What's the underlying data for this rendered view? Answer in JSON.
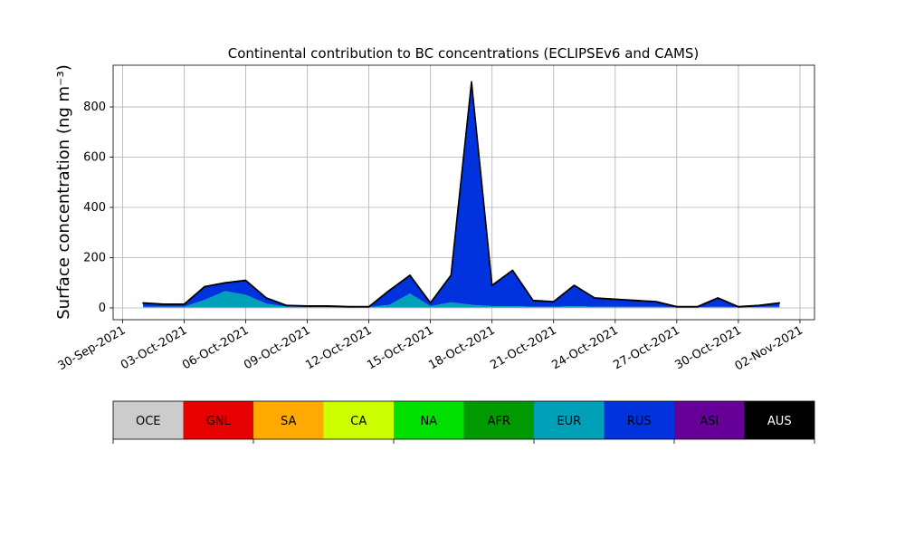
{
  "chart_data": {
    "type": "stacked_area",
    "title": "Continental contribution to BC concentrations (ECLIPSEv6 and CAMS)",
    "y_label": "Surface concentration (ng m⁻³)",
    "x": [
      "2021-10-01",
      "2021-10-02",
      "2021-10-03",
      "2021-10-04",
      "2021-10-05",
      "2021-10-06",
      "2021-10-07",
      "2021-10-08",
      "2021-10-09",
      "2021-10-10",
      "2021-10-11",
      "2021-10-12",
      "2021-10-13",
      "2021-10-14",
      "2021-10-15",
      "2021-10-16",
      "2021-10-17",
      "2021-10-18",
      "2021-10-19",
      "2021-10-20",
      "2021-10-21",
      "2021-10-22",
      "2021-10-23",
      "2021-10-24",
      "2021-10-25",
      "2021-10-26",
      "2021-10-27",
      "2021-10-28",
      "2021-10-29",
      "2021-10-30",
      "2021-10-31",
      "2021-11-01"
    ],
    "series": [
      {
        "name": "OCE",
        "color": "#cccccc",
        "values": [
          0,
          0,
          0,
          0,
          0,
          0,
          0,
          0,
          0,
          0,
          0,
          0,
          0,
          0,
          0,
          0,
          0,
          0,
          0,
          0,
          0,
          0,
          0,
          0,
          0,
          0,
          0,
          0,
          0,
          0,
          0,
          0
        ]
      },
      {
        "name": "GNL",
        "color": "#e60000",
        "values": [
          0,
          0,
          0,
          0,
          0,
          0,
          0,
          0,
          0,
          0,
          0,
          0,
          0,
          0,
          0,
          0,
          0,
          0,
          0,
          0,
          0,
          0,
          0,
          0,
          0,
          0,
          0,
          0,
          0,
          0,
          0,
          0
        ]
      },
      {
        "name": "SA",
        "color": "#ffaa00",
        "values": [
          0,
          0,
          0,
          0,
          0,
          0,
          0,
          0,
          0,
          0,
          0,
          0,
          0,
          0,
          0,
          0,
          0,
          0,
          0,
          0,
          0,
          0,
          0,
          0,
          0,
          0,
          0,
          0,
          0,
          0,
          0,
          0
        ]
      },
      {
        "name": "CA",
        "color": "#ccff00",
        "values": [
          1,
          1,
          1,
          1,
          1,
          1,
          1,
          1,
          1,
          1,
          1,
          1,
          1,
          1,
          1,
          1,
          1,
          1,
          1,
          1,
          1,
          1,
          1,
          1,
          1,
          1,
          1,
          1,
          1,
          1,
          1,
          1
        ]
      },
      {
        "name": "NA",
        "color": "#00e000",
        "values": [
          1,
          1,
          1,
          1,
          1,
          1,
          1,
          1,
          1,
          1,
          1,
          1,
          1,
          1,
          1,
          1,
          1,
          1,
          1,
          1,
          1,
          1,
          1,
          1,
          1,
          1,
          1,
          1,
          1,
          1,
          1,
          1
        ]
      },
      {
        "name": "AFR",
        "color": "#009900",
        "values": [
          0,
          0,
          0,
          0,
          0,
          0,
          0,
          0,
          0,
          0,
          0,
          0,
          0,
          0,
          0,
          0,
          0,
          0,
          0,
          0,
          0,
          0,
          0,
          0,
          0,
          0,
          0,
          0,
          0,
          0,
          0,
          0
        ]
      },
      {
        "name": "EUR",
        "color": "#00a0b8",
        "values": [
          3,
          3,
          3,
          30,
          65,
          50,
          15,
          3,
          2,
          2,
          2,
          1,
          10,
          55,
          5,
          20,
          10,
          5,
          5,
          3,
          3,
          5,
          3,
          3,
          3,
          3,
          1,
          1,
          3,
          1,
          2,
          3
        ]
      },
      {
        "name": "RUS",
        "color": "#0033dd",
        "values": [
          14,
          9,
          9,
          52,
          32,
          57,
          22,
          4,
          3,
          3,
          0,
          1,
          57,
          72,
          12,
          107,
          887,
          82,
          142,
          24,
          19,
          82,
          34,
          29,
          24,
          19,
          1,
          1,
          34,
          1,
          5,
          14
        ]
      },
      {
        "name": "ASI",
        "color": "#660099",
        "values": [
          0,
          0,
          0,
          0,
          0,
          0,
          0,
          0,
          0,
          0,
          0,
          0,
          0,
          0,
          0,
          0,
          0,
          0,
          0,
          0,
          0,
          0,
          0,
          0,
          0,
          0,
          0,
          0,
          0,
          0,
          0,
          0
        ]
      },
      {
        "name": "AUS",
        "color": "#000000",
        "values": [
          1,
          1,
          1,
          1,
          1,
          1,
          1,
          1,
          1,
          1,
          1,
          1,
          1,
          1,
          1,
          1,
          1,
          1,
          1,
          1,
          1,
          1,
          1,
          1,
          1,
          1,
          1,
          1,
          1,
          1,
          1,
          1
        ]
      }
    ],
    "xlim": [
      "2021-09-29T13:00",
      "2021-11-02T17:00"
    ],
    "xticks": [
      {
        "value": "2021-09-30",
        "label": "30-Sep-2021"
      },
      {
        "value": "2021-10-03",
        "label": "03-Oct-2021"
      },
      {
        "value": "2021-10-06",
        "label": "06-Oct-2021"
      },
      {
        "value": "2021-10-09",
        "label": "09-Oct-2021"
      },
      {
        "value": "2021-10-12",
        "label": "12-Oct-2021"
      },
      {
        "value": "2021-10-15",
        "label": "15-Oct-2021"
      },
      {
        "value": "2021-10-18",
        "label": "18-Oct-2021"
      },
      {
        "value": "2021-10-21",
        "label": "21-Oct-2021"
      },
      {
        "value": "2021-10-24",
        "label": "24-Oct-2021"
      },
      {
        "value": "2021-10-27",
        "label": "27-Oct-2021"
      },
      {
        "value": "2021-10-30",
        "label": "30-Oct-2021"
      },
      {
        "value": "2021-11-02",
        "label": "02-Nov-2021"
      }
    ],
    "ylim": [
      -47,
      966
    ],
    "yticks": [
      0,
      200,
      400,
      600,
      800
    ],
    "grid": true,
    "legend": "colorbar-bottom"
  }
}
